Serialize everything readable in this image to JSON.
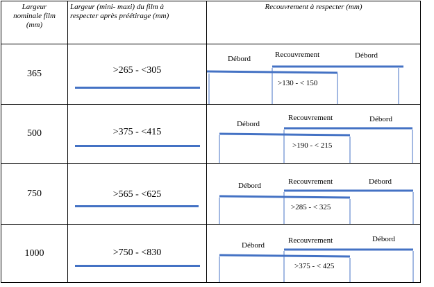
{
  "header": {
    "col1": [
      "Largeur",
      "nominale film",
      "(mm)"
    ],
    "col2": [
      "Largeur (mini- maxi) du film à",
      "respecter après préétirage (mm)"
    ],
    "col3": "Recouvrement à respecter (mm)"
  },
  "diagram_labels": {
    "debord": "Débord",
    "recouvrement": "Recouvrement"
  },
  "rows": [
    {
      "nominal": "365",
      "range": ">265 - <305",
      "overlap": ">130 - < 150"
    },
    {
      "nominal": "500",
      "range": ">375 - <415",
      "overlap": ">190 - < 215"
    },
    {
      "nominal": "750",
      "range": ">565 - <625",
      "overlap": ">285 - < 325"
    },
    {
      "nominal": "1000",
      "range": ">750 - <830",
      "overlap": ">375 - < 425"
    }
  ],
  "colors": {
    "bar": "#4472c4"
  }
}
